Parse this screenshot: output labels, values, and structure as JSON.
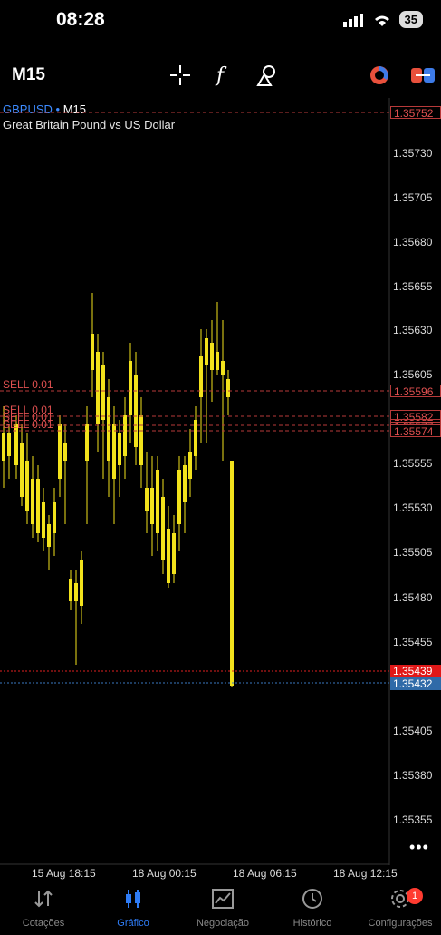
{
  "status_bar": {
    "time": "08:28",
    "battery": "35"
  },
  "toolbar": {
    "timeframe": "M15",
    "icons": [
      "crosshair-icon",
      "indicator-function-icon",
      "objects-icon",
      "clock-pie-icon",
      "trade-toggle-icon"
    ]
  },
  "chart": {
    "symbol": "GBPUSD",
    "timeframe": "M15",
    "description": "Great Britain Pound vs US Dollar",
    "price_labels": [
      "1.35730",
      "1.35705",
      "1.35680",
      "1.35655",
      "1.35630",
      "1.35605",
      "1.35555",
      "1.35530",
      "1.35505",
      "1.35480",
      "1.35455",
      "1.35405",
      "1.35380",
      "1.35355"
    ],
    "time_labels": [
      "15 Aug 18:15",
      "18 Aug 00:15",
      "18 Aug 06:15",
      "18 Aug 12:15"
    ],
    "order_lines": [
      {
        "label": "",
        "price": "1.35752"
      },
      {
        "label": "SELL 0.01",
        "price": "1.35596"
      },
      {
        "label": "SELL 0.01",
        "price": "1.35582"
      },
      {
        "label": "SELL 0.01",
        "price": "1.35577"
      },
      {
        "label": "SELL 0.01",
        "price": "1.35574"
      }
    ],
    "ask_price": "1.35439",
    "bid_price": "1.35432",
    "candle_color": "#f2e21c",
    "order_line_color": "#d04040",
    "bid_color": "#2f6aa8"
  },
  "bottom_nav": {
    "items": [
      {
        "label": "Cotações",
        "icon": "quotes-arrows-icon"
      },
      {
        "label": "Gráfico",
        "icon": "candles-chart-icon",
        "active": true
      },
      {
        "label": "Negociação",
        "icon": "trade-chart-icon"
      },
      {
        "label": "Histórico",
        "icon": "history-clock-icon"
      },
      {
        "label": "Configurações",
        "icon": "settings-gear-icon",
        "badge": "1"
      }
    ]
  }
}
